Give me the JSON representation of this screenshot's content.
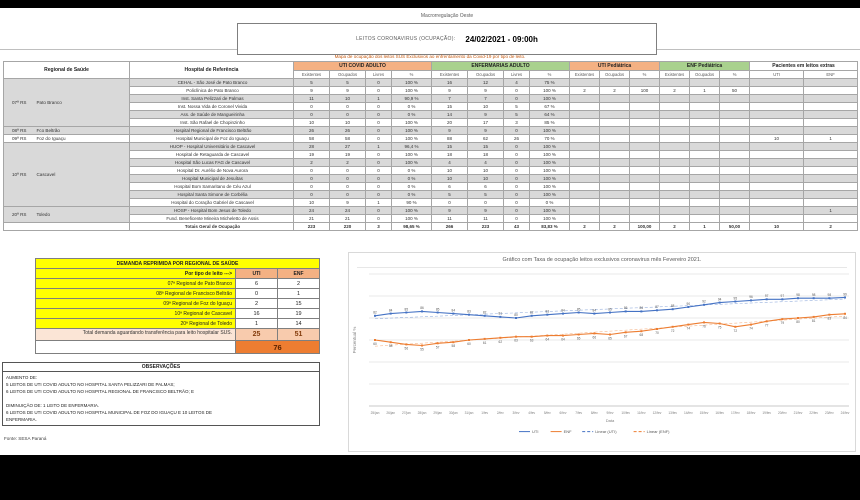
{
  "report": {
    "macro_label": "Macrorregulação Oeste",
    "title": "LEITOS CORONAVIRUS (OCUPAÇÃO):",
    "datetime": "24/02/2021 - 09:00h",
    "subtitle": "Mapa de ocupação dos leitos SUS Exclusivos ao enfrentamento da Covid-19 por tipo de leito.",
    "source": "Fonte: SESA Paraná"
  },
  "main_table": {
    "groups": [
      {
        "label": "Regional de Saúde",
        "colspan": 1,
        "rowspan": 2,
        "cls": "plain"
      },
      {
        "label": "Hospital de Referência",
        "colspan": 1,
        "rowspan": 2,
        "cls": "plain"
      },
      {
        "label": "UTI COVID ADULTO",
        "colspan": 4,
        "cls": "orange"
      },
      {
        "label": "ENFERMARIAS ADULTO",
        "colspan": 4,
        "cls": "green"
      },
      {
        "label": "UTI Pediátrica",
        "colspan": 3,
        "cls": "orange"
      },
      {
        "label": "ENF Pediátrica",
        "colspan": 3,
        "cls": "green"
      },
      {
        "label": "Pacientes em leitos extras",
        "colspan": 2,
        "cls": "plain"
      }
    ],
    "sub_headers": [
      "Existentes",
      "Ocupados",
      "Livres",
      "%",
      "Existentes",
      "Ocupados",
      "Livres",
      "%",
      "Existentes",
      "Ocupados",
      "%",
      "Existentes",
      "Ocupados",
      "%",
      "UTI",
      "ENF"
    ],
    "regions": [
      {
        "code": "07ª RS",
        "name": "Pato Branco",
        "hospitals": [
          {
            "name": "CEHAL - São José de Pato Branco",
            "uti": [
              "5",
              "5",
              "0",
              "100"
            ],
            "enf": [
              "16",
              "12",
              "4",
              "75"
            ]
          },
          {
            "name": "Policlínica de Pato Branco",
            "uti": [
              "9",
              "9",
              "0",
              "100"
            ],
            "enf": [
              "9",
              "9",
              "0",
              "100"
            ],
            "uti_ped": [
              "2",
              "2",
              "100"
            ],
            "enf_ped": [
              "2",
              "1",
              "50"
            ]
          },
          {
            "name": "Inst. Santa Pelizzari de Palmas",
            "uti": [
              "11",
              "10",
              "1",
              "90,9"
            ],
            "enf": [
              "7",
              "7",
              "0",
              "100"
            ]
          },
          {
            "name": "Inst. Nossa Vida de Coronel Vivida",
            "uti": [
              "0",
              "0",
              "0",
              "0"
            ],
            "enf": [
              "15",
              "10",
              "5",
              "67"
            ]
          },
          {
            "name": "Ass. de Saúde de Mangueirinha",
            "uti": [
              "0",
              "0",
              "0",
              "0"
            ],
            "enf": [
              "14",
              "9",
              "5",
              "64"
            ]
          },
          {
            "name": "Inst. São Rafael de Chopinzinho",
            "uti": [
              "10",
              "10",
              "0",
              "100"
            ],
            "enf": [
              "20",
              "17",
              "3",
              "85"
            ]
          }
        ]
      },
      {
        "code": "08ª RS",
        "name": "Fco Beltrão",
        "hospitals": [
          {
            "name": "Hospital Regional de Francisco Beltrão",
            "uti": [
              "26",
              "26",
              "0",
              "100"
            ],
            "enf": [
              "9",
              "9",
              "0",
              "100"
            ]
          }
        ]
      },
      {
        "code": "09ª RS",
        "name": "Foz do Iguaçu",
        "hospitals": [
          {
            "name": "Hospital Municipal de Foz do Iguaçu",
            "uti": [
              "58",
              "58",
              "0",
              "100"
            ],
            "enf": [
              "88",
              "62",
              "26",
              "70"
            ],
            "extras": [
              "10",
              "1"
            ]
          }
        ]
      },
      {
        "code": "10ª RS",
        "name": "Cascavel",
        "hospitals": [
          {
            "name": "HUOP - Hospital Universitário de Cascavel",
            "uti": [
              "28",
              "27",
              "1",
              "96,4"
            ],
            "enf": [
              "15",
              "15",
              "0",
              "100"
            ]
          },
          {
            "name": "Hospital de Retaguarda de Cascavel",
            "uti": [
              "19",
              "19",
              "0",
              "100"
            ],
            "enf": [
              "18",
              "18",
              "0",
              "100"
            ]
          },
          {
            "name": "Hospital São Lucas FAG de Cascavel",
            "uti": [
              "2",
              "2",
              "0",
              "100"
            ],
            "enf": [
              "4",
              "4",
              "0",
              "100"
            ]
          },
          {
            "name": "Hospital Dr. Aurélio de Nova Aurora",
            "uti": [
              "0",
              "0",
              "0",
              "0"
            ],
            "enf": [
              "10",
              "10",
              "0",
              "100"
            ]
          },
          {
            "name": "Hospital Municipal de Jesuítas",
            "uti": [
              "0",
              "0",
              "0",
              "0"
            ],
            "enf": [
              "10",
              "10",
              "0",
              "100"
            ]
          },
          {
            "name": "Hospital Bom Samaritano de Céu Azul",
            "uti": [
              "0",
              "0",
              "0",
              "0"
            ],
            "enf": [
              "6",
              "6",
              "0",
              "100"
            ]
          },
          {
            "name": "Hospital Santa Simone de Corbélia",
            "uti": [
              "0",
              "0",
              "0",
              "0"
            ],
            "enf": [
              "5",
              "5",
              "0",
              "100"
            ]
          },
          {
            "name": "Hospital do Coração Gabriel de Cascavel",
            "uti": [
              "10",
              "9",
              "1",
              "90"
            ],
            "enf": [
              "0",
              "0",
              "0",
              "0"
            ]
          }
        ]
      },
      {
        "code": "20ª RS",
        "name": "Toledo",
        "hospitals": [
          {
            "name": "HOSP - Hospital Bom Jesus de Toledo",
            "uti": [
              "24",
              "24",
              "0",
              "100"
            ],
            "enf": [
              "9",
              "9",
              "0",
              "100"
            ],
            "extras": [
              "",
              "1"
            ]
          },
          {
            "name": "Fund. Beneficente Mineira Micheletto de Assis",
            "uti": [
              "21",
              "21",
              "0",
              "100"
            ],
            "enf": [
              "11",
              "11",
              "0",
              "100"
            ]
          }
        ]
      }
    ],
    "totals": {
      "label": "Totais Geral de Ocupação",
      "uti": [
        "223",
        "220",
        "3",
        "98,65"
      ],
      "enf": [
        "266",
        "223",
        "43",
        "83,83"
      ],
      "uti_ped": [
        "2",
        "2",
        "100,00"
      ],
      "enf_ped": [
        "2",
        "1",
        "50,00"
      ],
      "extras": [
        "10",
        "2"
      ]
    }
  },
  "demand_table": {
    "title": "DEMANDA REPRIMIDA POR REGIONAL DE SAÚDE",
    "header_label": "Por tipo de leito --->",
    "columns": [
      "UTI",
      "ENF"
    ],
    "rows": [
      {
        "label": "07ª Regional de Pato Branco",
        "uti": "6",
        "enf": "2"
      },
      {
        "label": "08ª Regional de Francisco Beltrão",
        "uti": "0",
        "enf": "1"
      },
      {
        "label": "09ª Regional de Foz do Iguaçu",
        "uti": "2",
        "enf": "15"
      },
      {
        "label": "10ª Regional de Cascavel",
        "uti": "16",
        "enf": "19"
      },
      {
        "label": "20ª Regional de Toledo",
        "uti": "1",
        "enf": "14"
      }
    ],
    "totals": {
      "uti": "25",
      "enf": "51"
    },
    "grand_total": "76",
    "note": "Total demanda aguardando transferência para leito hospitalar SUS."
  },
  "observations": {
    "title": "OBSERVAÇÕES",
    "lines": [
      "AUMENTO DE:",
      "5 LEITOS DE UTI COVID ADULTO NO HOSPITAL SANTA PELIZZARI DE PALMAS;",
      "6 LEITOS DE UTI COVID ADULTO NO HOSPITAL REGIONAL DE FRANCISCO BELTRÃO; E",
      "",
      "DIMINUIÇÃO DE: 1 LEITO DE ENFERMARIA.",
      "6 LEITOS DE UTI COVID ADULTO NO HOSPITAL MUNICIPAL DE FOZ DO IGUAÇU E 10 LEITOS DE",
      "ENFERMARIA."
    ]
  },
  "chart_data": {
    "type": "line",
    "title": "Gráfico com Taxa de ocupação leitos exclusivos coronavirus mês Fevereiro 2021.",
    "xlabel": "Data",
    "ylabel": "Percentual %",
    "ylim": [
      0,
      120
    ],
    "grid": true,
    "legend_position": "bottom",
    "x": [
      "25/jan",
      "26/jan",
      "27/jan",
      "28/jan",
      "29/jan",
      "30/jan",
      "31/jan",
      "1/fev",
      "2/fev",
      "3/fev",
      "4/fev",
      "5/fev",
      "6/fev",
      "7/fev",
      "8/fev",
      "9/fev",
      "10/fev",
      "11/fev",
      "12/fev",
      "13/fev",
      "14/fev",
      "15/fev",
      "16/fev",
      "17/fev",
      "18/fev",
      "19/fev",
      "20/fev",
      "21/fev",
      "22/fev",
      "23/fev",
      "24/fev"
    ],
    "series": [
      {
        "name": "UTI",
        "color": "#4472C4",
        "values": [
          82,
          84,
          85,
          86,
          85,
          84,
          83,
          82,
          81,
          80,
          82,
          83,
          84,
          85,
          84,
          85,
          86,
          86,
          87,
          88,
          90,
          92,
          94,
          95,
          96,
          97,
          97,
          98,
          98,
          98,
          98.65
        ]
      },
      {
        "name": "ENF",
        "color": "#ED7D31",
        "values": [
          60,
          58,
          56,
          55,
          57,
          58,
          60,
          61,
          62,
          63,
          63,
          64,
          64,
          65,
          66,
          65,
          67,
          68,
          70,
          72,
          74,
          76,
          75,
          72,
          74,
          77,
          79,
          80,
          81,
          83,
          83.83
        ]
      }
    ],
    "trendlines": [
      "Linear (UTI)",
      "Linear (ENF)"
    ]
  }
}
